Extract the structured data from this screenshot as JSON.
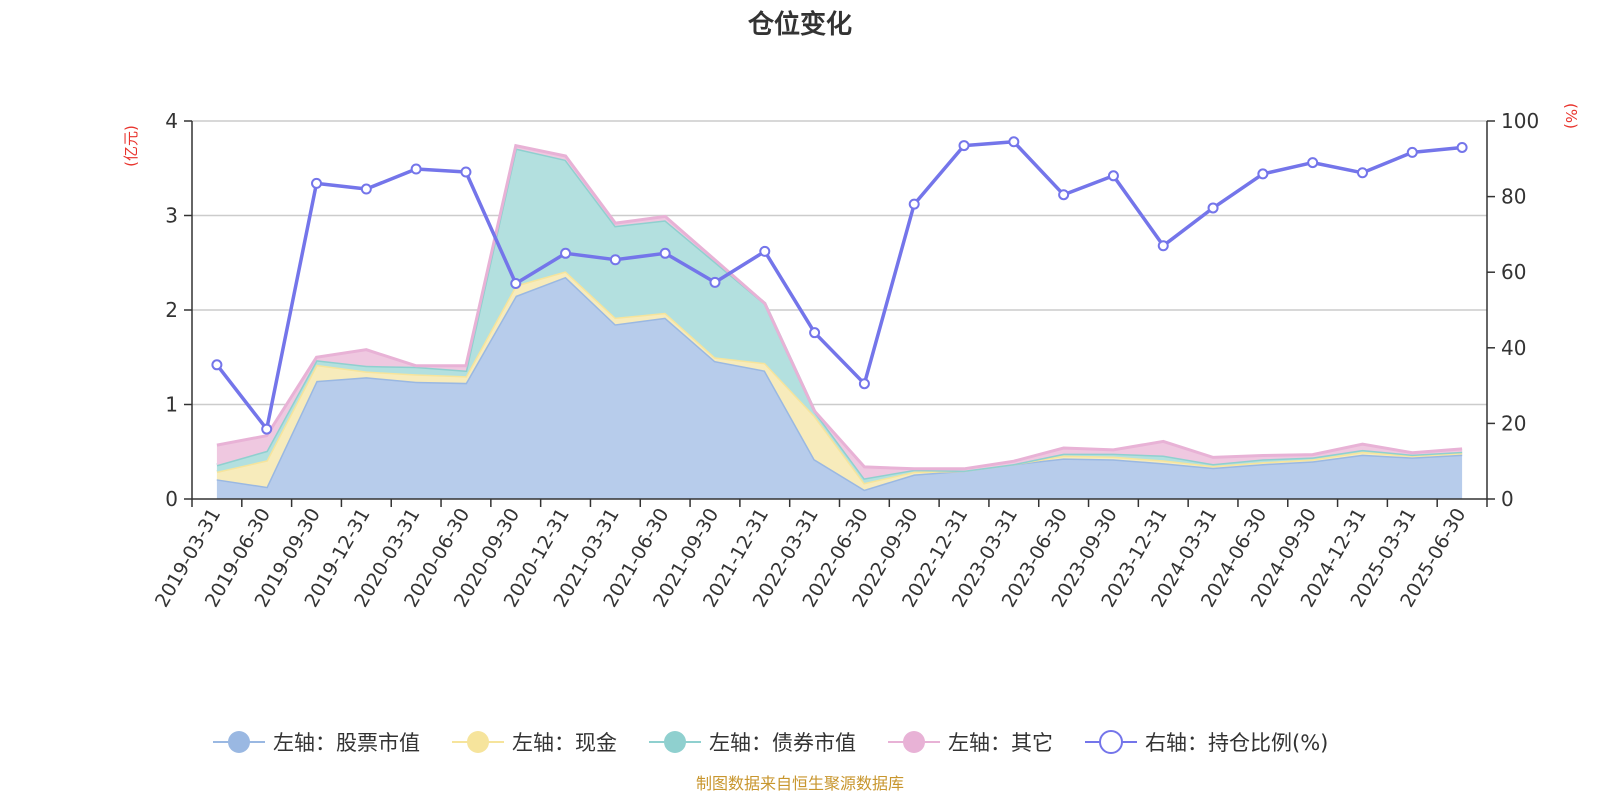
{
  "chart_data": {
    "type": "area",
    "title": "仓位变化",
    "left_axis": {
      "unit": "(亿元)",
      "ylim": [
        0,
        4
      ],
      "ticks": [
        "0",
        "1",
        "2",
        "3",
        "4"
      ]
    },
    "right_axis": {
      "unit": "(%)",
      "ylim": [
        0,
        100
      ],
      "ticks": [
        "0",
        "20",
        "40",
        "60",
        "80",
        "100"
      ]
    },
    "categories": [
      "2019-03-31",
      "2019-06-30",
      "2019-09-30",
      "2019-12-31",
      "2020-03-31",
      "2020-06-30",
      "2020-09-30",
      "2020-12-31",
      "2021-03-31",
      "2021-06-30",
      "2021-09-30",
      "2021-12-31",
      "2022-03-31",
      "2022-06-30",
      "2022-09-30",
      "2022-12-31",
      "2023-03-31",
      "2023-06-30",
      "2023-09-30",
      "2023-12-31",
      "2024-03-31",
      "2024-06-30",
      "2024-09-30",
      "2024-12-31",
      "2025-03-31",
      "2025-06-30"
    ],
    "stacked": true,
    "series": [
      {
        "name": "左轴：股票市值",
        "axis": "left",
        "type": "area",
        "color": "#9ab8e2",
        "fill": "#b7cceb",
        "values": [
          0.21,
          0.13,
          1.25,
          1.29,
          1.24,
          1.23,
          2.15,
          2.35,
          1.85,
          1.92,
          1.46,
          1.36,
          0.42,
          0.1,
          0.26,
          0.3,
          0.37,
          0.43,
          0.42,
          0.38,
          0.33,
          0.37,
          0.4,
          0.47,
          0.44,
          0.47
        ]
      },
      {
        "name": "左轴：现金",
        "axis": "left",
        "type": "area",
        "color": "#f6e49c",
        "fill": "#f7ebbb",
        "values": [
          0.08,
          0.28,
          0.17,
          0.06,
          0.08,
          0.07,
          0.11,
          0.06,
          0.07,
          0.05,
          0.04,
          0.08,
          0.46,
          0.07,
          0.03,
          0.0,
          0.0,
          0.03,
          0.03,
          0.03,
          0.02,
          0.02,
          0.02,
          0.03,
          0.02,
          0.02
        ]
      },
      {
        "name": "左轴：债券市值",
        "axis": "left",
        "type": "area",
        "color": "#8fd0cf",
        "fill": "#b3e0df",
        "values": [
          0.07,
          0.1,
          0.05,
          0.06,
          0.08,
          0.06,
          1.45,
          1.18,
          0.97,
          0.98,
          1.01,
          0.63,
          0.05,
          0.05,
          0.02,
          0.0,
          0.0,
          0.02,
          0.03,
          0.05,
          0.02,
          0.03,
          0.02,
          0.02,
          0.01,
          0.01
        ]
      },
      {
        "name": "左轴：其它",
        "axis": "left",
        "type": "area",
        "color": "#e8b2d6",
        "fill": "#efc8e0",
        "values": [
          0.21,
          0.16,
          0.03,
          0.17,
          0.01,
          0.05,
          0.03,
          0.04,
          0.03,
          0.04,
          0.02,
          0.0,
          0.0,
          0.12,
          0.01,
          0.02,
          0.03,
          0.06,
          0.04,
          0.15,
          0.07,
          0.04,
          0.03,
          0.06,
          0.02,
          0.03
        ]
      },
      {
        "name": "右轴：持仓比例(%)",
        "axis": "right",
        "type": "line",
        "color": "#7475ea",
        "values": [
          35.5,
          18.5,
          83.5,
          82,
          87.3,
          86.5,
          57,
          65,
          63.3,
          65,
          57.3,
          65.5,
          44,
          30.5,
          78,
          93.5,
          94.5,
          80.5,
          85.5,
          67,
          77,
          86,
          89,
          86.3,
          91.7,
          93
        ]
      }
    ],
    "legend_position": "bottom-center",
    "grid": true
  },
  "footer": {
    "source": "制图数据来自恒生聚源数据库"
  },
  "colors": {
    "left_unit": "#e8332c",
    "right_unit": "#e8332c",
    "source": "#c8962e",
    "axis": "#333333",
    "grid": "#cccccc"
  }
}
